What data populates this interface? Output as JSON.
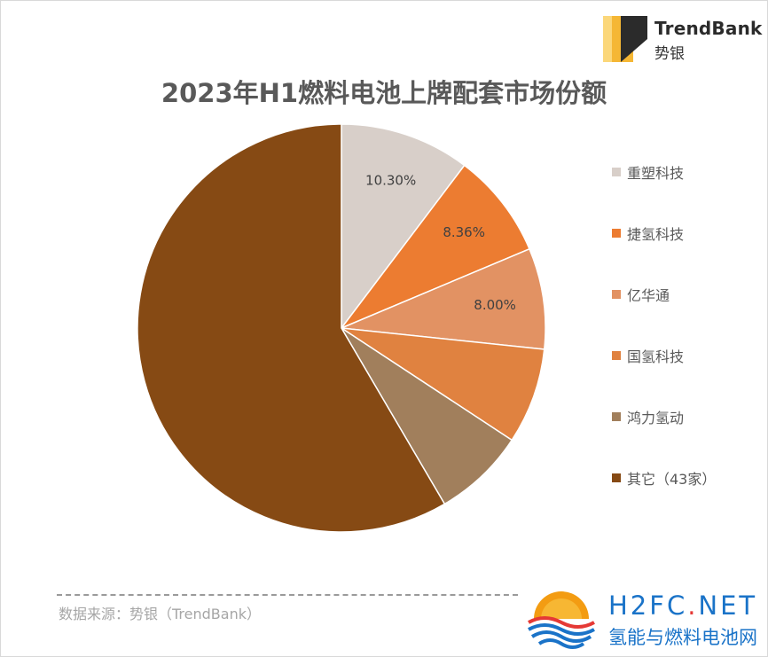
{
  "brand": {
    "name": "TrendBank",
    "sub": "势银",
    "colors": {
      "dark": "#2b2b2b",
      "gold": "#f5b735",
      "gold_light": "#fbd77a"
    }
  },
  "chart_data": {
    "type": "pie",
    "title": "2023年H1燃料电池上牌配套市场份额",
    "start_angle_deg": 0,
    "direction": "clockwise",
    "legend_position": "right",
    "slices": [
      {
        "label": "重塑科技",
        "value": 10.3,
        "color": "#d8cfc9",
        "data_label": "10.30%"
      },
      {
        "label": "捷氢科技",
        "value": 8.36,
        "color": "#ec7c31",
        "data_label": "8.36%"
      },
      {
        "label": "亿华通",
        "value": 8.0,
        "color": "#e29263",
        "data_label": "8.00%"
      },
      {
        "label": "国氢科技",
        "value": 7.6,
        "color": "#e08240",
        "data_label": ""
      },
      {
        "label": "鸿力氢动",
        "value": 7.3,
        "color": "#a17f5c",
        "data_label": ""
      },
      {
        "label": "其它（43家）",
        "value": 58.44,
        "color": "#864a14",
        "data_label": ""
      }
    ]
  },
  "footer": {
    "source": "数据来源：势银（TrendBank）"
  },
  "watermark": {
    "name_main": "H2FC",
    "name_dot": ".",
    "name_tld": "NET",
    "sub": "氢能与燃料电池网",
    "colors": {
      "blue": "#1a73c8",
      "red": "#e53935",
      "orange": "#f39c12"
    }
  }
}
